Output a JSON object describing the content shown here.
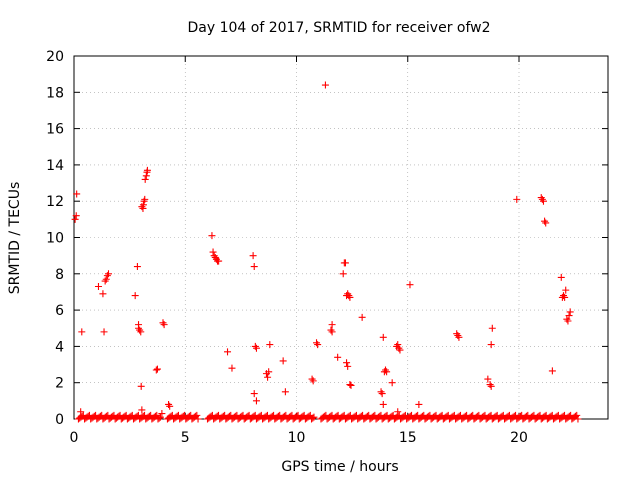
{
  "chart_data": {
    "type": "scatter",
    "title": "Day 104 of 2017, SRMTID for receiver ofw2",
    "xlabel": "GPS time / hours",
    "ylabel": "SRMTID / TECUs",
    "xlim": [
      0,
      24
    ],
    "ylim": [
      0,
      20
    ],
    "x_ticks": [
      0,
      5,
      10,
      15,
      20
    ],
    "y_ticks": [
      0,
      2,
      4,
      6,
      8,
      10,
      12,
      14,
      16,
      18,
      20
    ],
    "x_tick_labels": [
      "0",
      "5",
      "10",
      "15",
      "20"
    ],
    "y_tick_labels": [
      "0",
      "2",
      "4",
      "6",
      "8",
      "10",
      "12",
      "14",
      "16",
      "18",
      "20"
    ],
    "grid": true,
    "series": [
      {
        "name": "SRMTID",
        "color": "#ff0000",
        "marker": "plus",
        "points": [
          [
            0.05,
            11.0
          ],
          [
            0.1,
            11.2
          ],
          [
            0.12,
            12.4
          ],
          [
            0.35,
            4.8
          ],
          [
            0.3,
            0.4
          ],
          [
            1.1,
            7.3
          ],
          [
            1.3,
            6.9
          ],
          [
            1.35,
            4.8
          ],
          [
            1.4,
            7.6
          ],
          [
            1.45,
            7.7
          ],
          [
            1.5,
            7.9
          ],
          [
            1.55,
            8.0
          ],
          [
            2.75,
            6.8
          ],
          [
            2.85,
            8.4
          ],
          [
            2.9,
            5.2
          ],
          [
            2.9,
            5.0
          ],
          [
            2.95,
            4.9
          ],
          [
            3.0,
            4.8
          ],
          [
            3.02,
            1.8
          ],
          [
            3.05,
            0.5
          ],
          [
            3.05,
            11.7
          ],
          [
            3.1,
            11.6
          ],
          [
            3.12,
            11.8
          ],
          [
            3.15,
            12.0
          ],
          [
            3.18,
            12.1
          ],
          [
            3.2,
            13.2
          ],
          [
            3.25,
            13.4
          ],
          [
            3.28,
            13.6
          ],
          [
            3.3,
            13.7
          ],
          [
            3.7,
            2.7
          ],
          [
            3.75,
            2.75
          ],
          [
            3.95,
            0.3
          ],
          [
            4.0,
            5.3
          ],
          [
            4.05,
            5.2
          ],
          [
            4.25,
            0.8
          ],
          [
            4.3,
            0.7
          ],
          [
            6.2,
            10.1
          ],
          [
            6.25,
            9.2
          ],
          [
            6.3,
            9.0
          ],
          [
            6.35,
            8.9
          ],
          [
            6.4,
            8.8
          ],
          [
            6.45,
            8.7
          ],
          [
            6.5,
            8.7
          ],
          [
            6.9,
            3.7
          ],
          [
            7.1,
            2.8
          ],
          [
            8.05,
            9.0
          ],
          [
            8.1,
            8.4
          ],
          [
            8.15,
            4.0
          ],
          [
            8.2,
            3.9
          ],
          [
            8.1,
            1.4
          ],
          [
            8.2,
            1.0
          ],
          [
            8.65,
            2.5
          ],
          [
            8.7,
            2.3
          ],
          [
            8.75,
            2.6
          ],
          [
            8.8,
            4.1
          ],
          [
            9.4,
            3.2
          ],
          [
            9.5,
            1.5
          ],
          [
            10.7,
            2.2
          ],
          [
            10.75,
            2.1
          ],
          [
            10.9,
            4.2
          ],
          [
            10.95,
            4.1
          ],
          [
            11.3,
            18.4
          ],
          [
            11.6,
            5.2
          ],
          [
            11.55,
            4.9
          ],
          [
            11.6,
            4.8
          ],
          [
            11.85,
            3.4
          ],
          [
            12.1,
            8.0
          ],
          [
            12.15,
            8.6
          ],
          [
            12.2,
            8.6
          ],
          [
            12.25,
            6.8
          ],
          [
            12.3,
            6.9
          ],
          [
            12.35,
            6.8
          ],
          [
            12.4,
            6.7
          ],
          [
            12.25,
            3.1
          ],
          [
            12.3,
            2.9
          ],
          [
            12.4,
            1.9
          ],
          [
            12.45,
            1.85
          ],
          [
            12.95,
            5.6
          ],
          [
            13.8,
            1.5
          ],
          [
            13.85,
            1.4
          ],
          [
            13.9,
            0.8
          ],
          [
            13.9,
            4.5
          ],
          [
            13.95,
            2.6
          ],
          [
            14.0,
            2.7
          ],
          [
            14.05,
            2.6
          ],
          [
            14.3,
            2.0
          ],
          [
            14.5,
            4.0
          ],
          [
            14.55,
            4.1
          ],
          [
            14.6,
            3.9
          ],
          [
            14.65,
            3.8
          ],
          [
            14.55,
            0.4
          ],
          [
            15.1,
            7.4
          ],
          [
            15.5,
            0.8
          ],
          [
            17.2,
            4.7
          ],
          [
            17.25,
            4.6
          ],
          [
            17.3,
            4.5
          ],
          [
            18.6,
            2.2
          ],
          [
            18.7,
            1.9
          ],
          [
            18.75,
            1.8
          ],
          [
            18.75,
            4.1
          ],
          [
            18.8,
            5.0
          ],
          [
            19.9,
            12.1
          ],
          [
            21.0,
            12.2
          ],
          [
            21.05,
            12.1
          ],
          [
            21.1,
            12.0
          ],
          [
            21.15,
            10.9
          ],
          [
            21.2,
            10.8
          ],
          [
            21.5,
            2.65
          ],
          [
            21.9,
            7.8
          ],
          [
            21.95,
            6.7
          ],
          [
            22.0,
            6.8
          ],
          [
            22.05,
            6.7
          ],
          [
            22.1,
            7.1
          ],
          [
            22.15,
            5.5
          ],
          [
            22.2,
            5.4
          ],
          [
            22.25,
            5.7
          ],
          [
            22.3,
            5.9
          ]
        ],
        "baseline_segments": [
          [
            0.2,
            3.9
          ],
          [
            4.2,
            5.6
          ],
          [
            6.0,
            10.8
          ],
          [
            11.1,
            22.7
          ]
        ],
        "baseline_values": [
          0.0,
          0.05,
          0.1,
          0.15,
          0.2
        ]
      }
    ]
  }
}
